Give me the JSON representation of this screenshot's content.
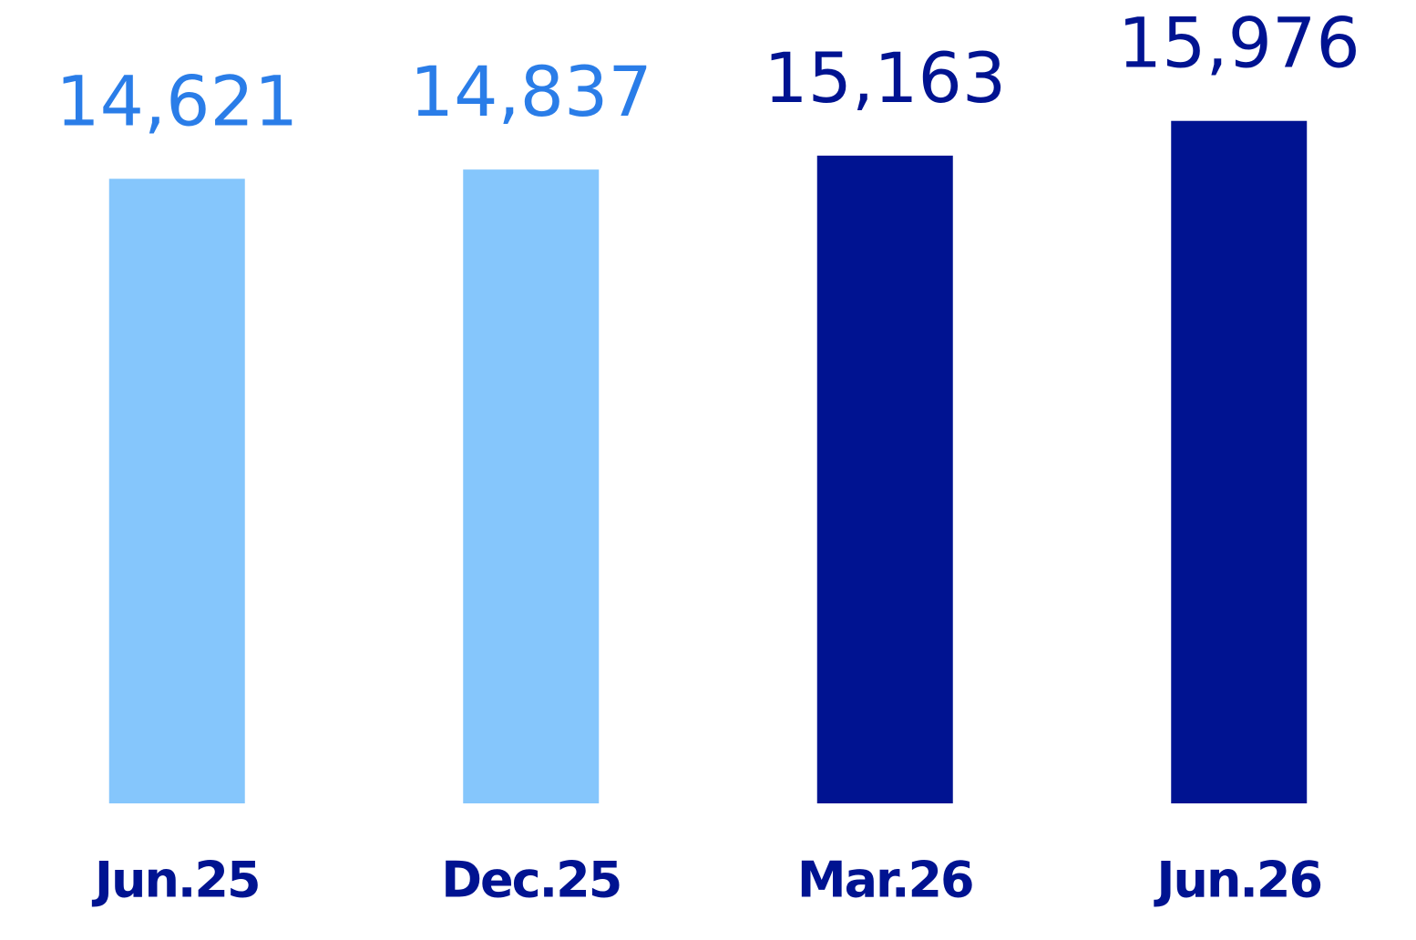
{
  "chart_data": {
    "type": "bar",
    "categories": [
      "Jun.25",
      "Dec.25",
      "Mar.26",
      "Jun.26"
    ],
    "values": [
      14621,
      14837,
      15163,
      15976
    ],
    "value_labels": [
      "14,621",
      "14,837",
      "15,163",
      "15,976"
    ],
    "colors": [
      "#85c6fc",
      "#85c6fc",
      "#001391",
      "#001391"
    ],
    "label_colors": [
      "#2a7de8",
      "#2a7de8",
      "#001391",
      "#001391"
    ],
    "category_color": "#001391",
    "ylim": [
      0,
      16000
    ]
  }
}
